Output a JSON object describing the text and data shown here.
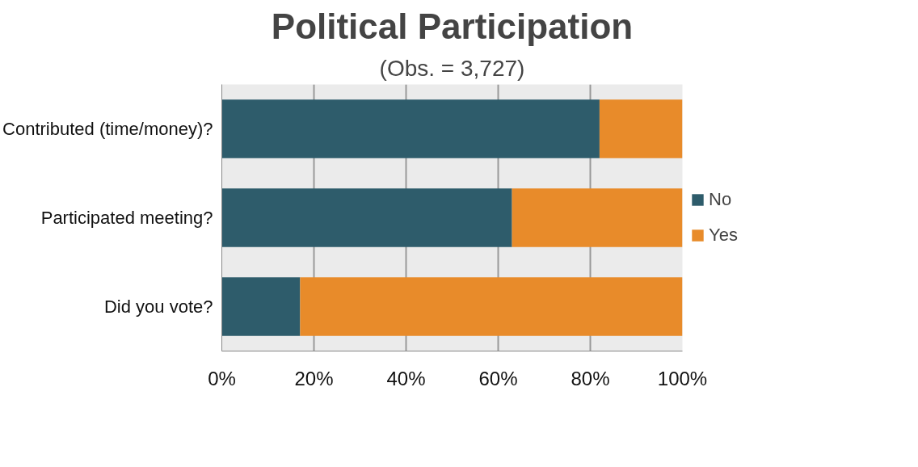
{
  "chart_data": {
    "type": "bar",
    "orientation": "horizontal",
    "stacked": true,
    "title": "Political Participation",
    "subtitle": "(Obs. = 3,727)",
    "categories": [
      "Contributed (time/money)?",
      "Participated meeting?",
      "Did you vote?"
    ],
    "series": [
      {
        "name": "No",
        "color": "#2e5c6b",
        "values": [
          82,
          63,
          17
        ]
      },
      {
        "name": "Yes",
        "color": "#e88b2a",
        "values": [
          18,
          37,
          83
        ]
      }
    ],
    "xlim": [
      0,
      100
    ],
    "xticks": [
      {
        "value": 0,
        "label": "0%"
      },
      {
        "value": 20,
        "label": "20%"
      },
      {
        "value": 40,
        "label": "40%"
      },
      {
        "value": 60,
        "label": "60%"
      },
      {
        "value": 80,
        "label": "80%"
      },
      {
        "value": 100,
        "label": "100%"
      }
    ],
    "grid": "x",
    "legend": "right"
  }
}
